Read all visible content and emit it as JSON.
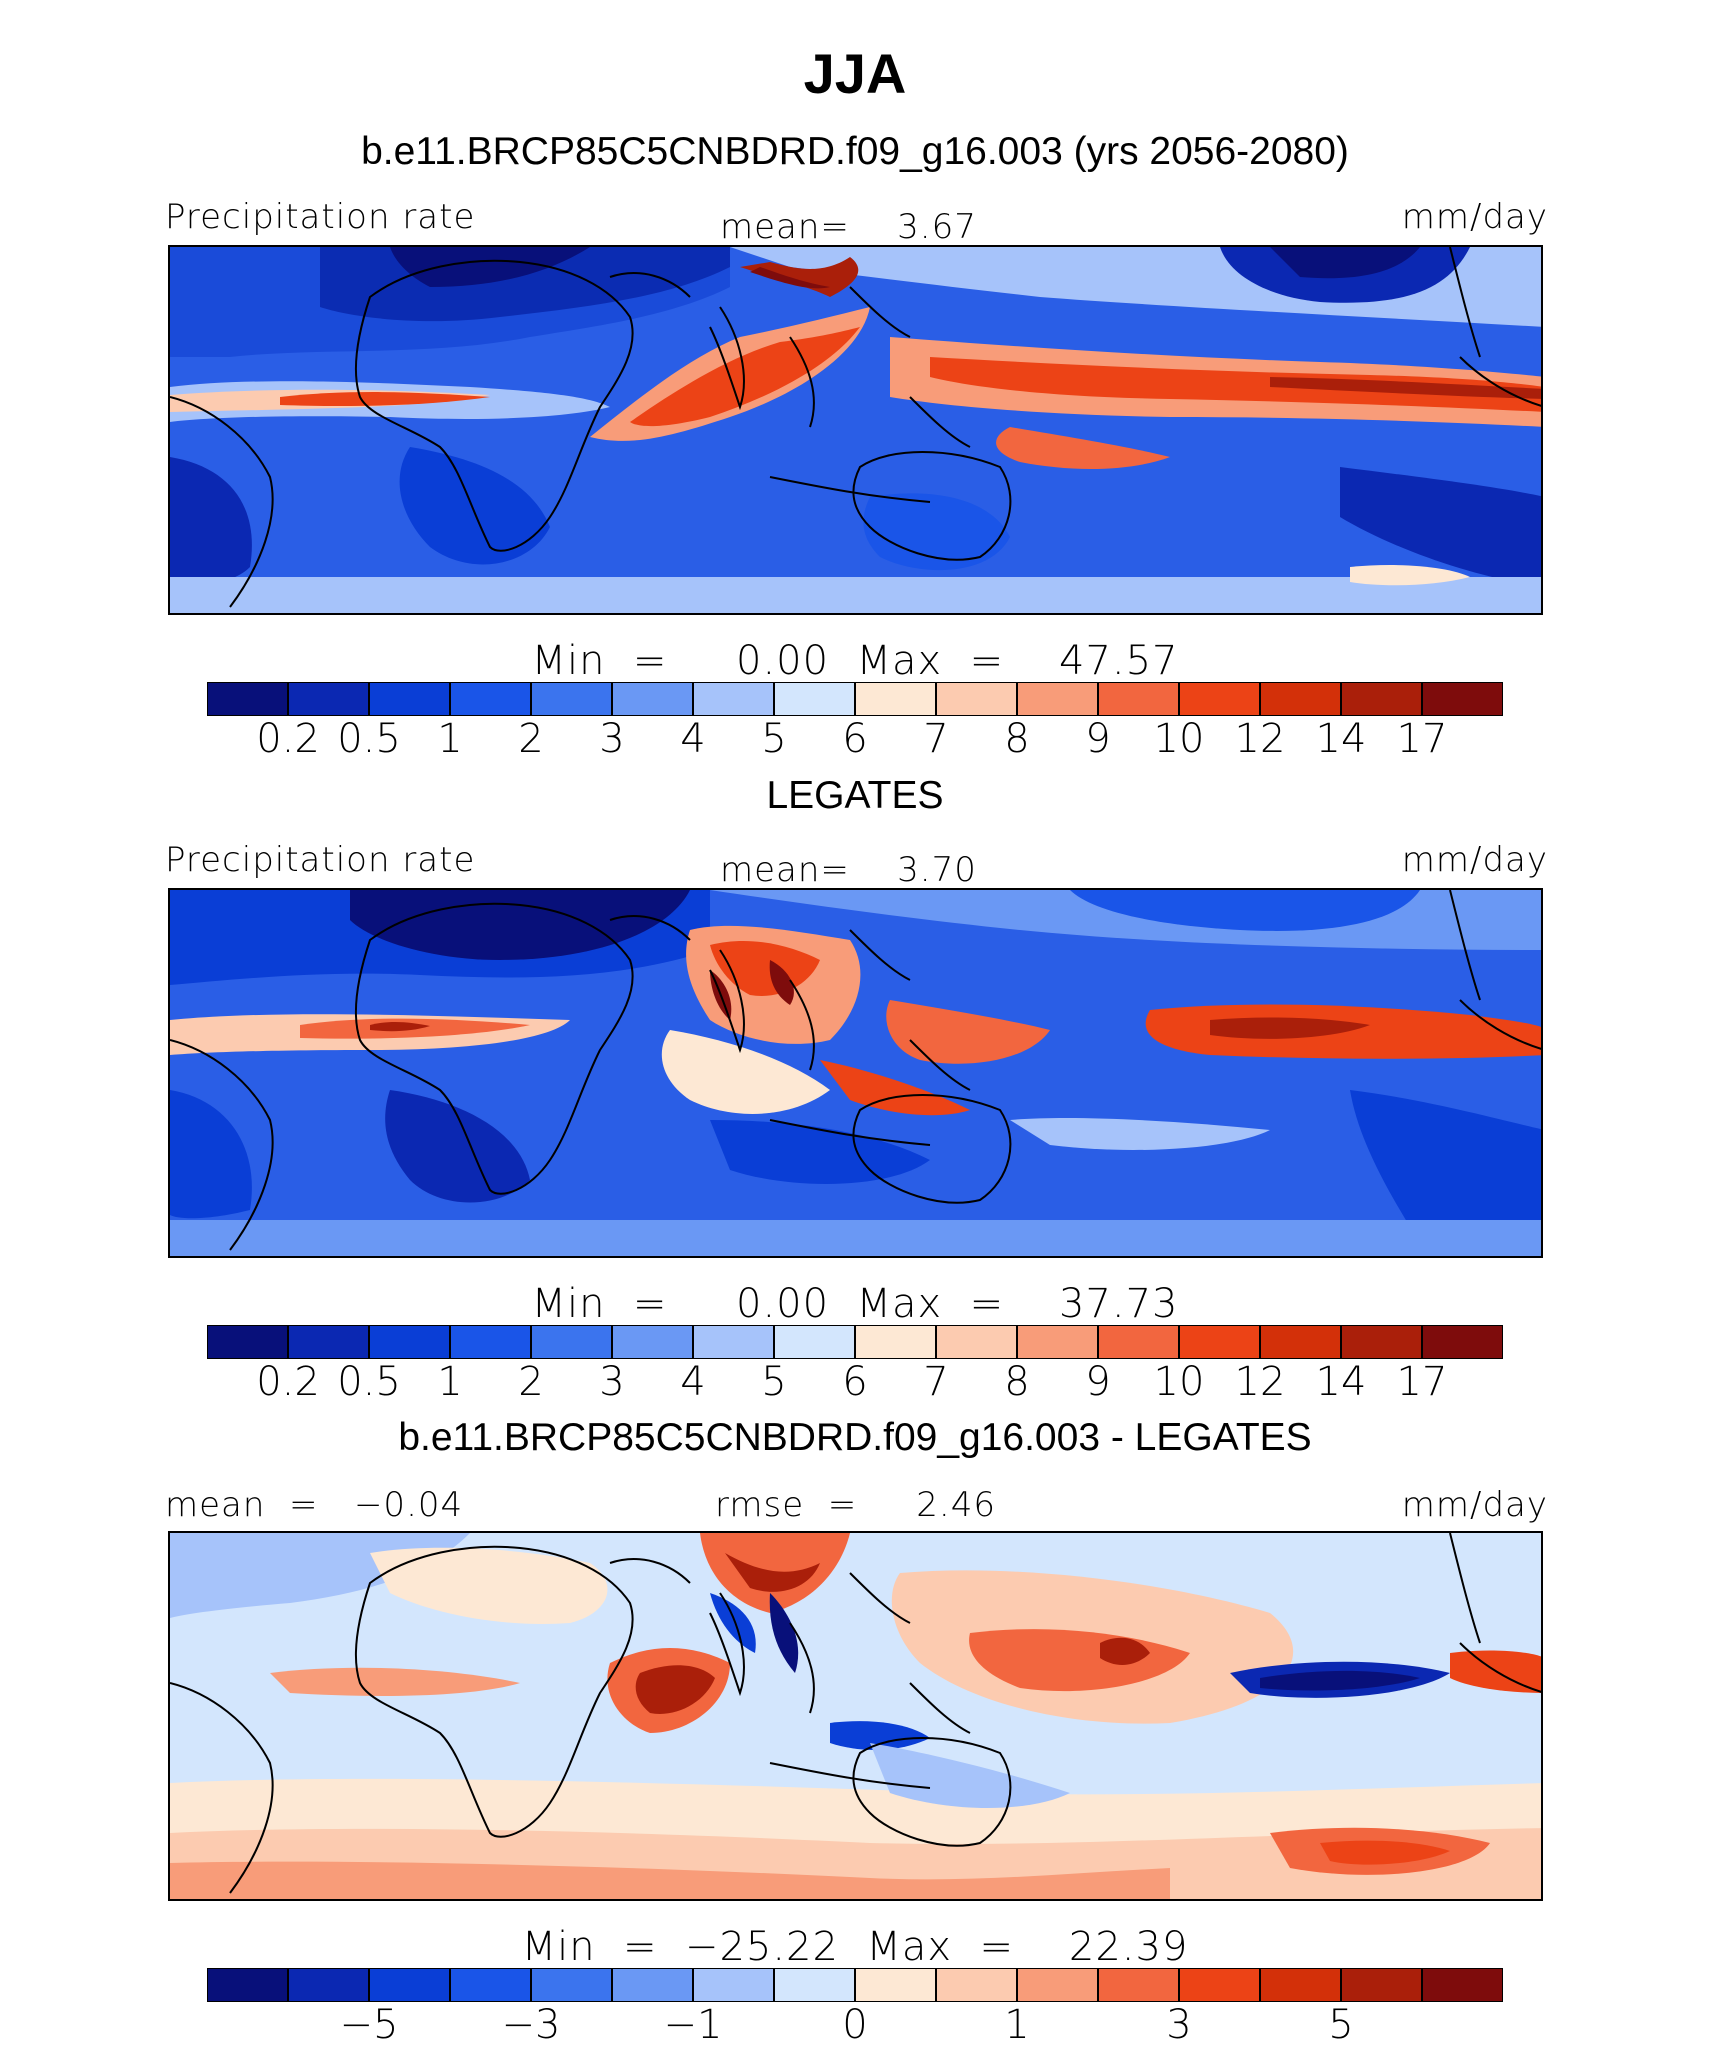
{
  "title": "JJA",
  "subtitle": "b.e11.BRCP85C5CNBDRD.f09_g16.003 (yrs 2056-2080)",
  "colors": {
    "precip_scale": [
      "#08107a",
      "#0b28b2",
      "#0a3ed6",
      "#1a55e8",
      "#3b74ee",
      "#6a98f4",
      "#a6c3fa",
      "#d3e6fd",
      "#fde8d4",
      "#fccbb0",
      "#f89c79",
      "#f2663f",
      "#ec4316",
      "#d33009",
      "#aa1f0a",
      "#7e0c0c"
    ],
    "diff_scale": [
      "#08107a",
      "#0b28b2",
      "#0a3ed6",
      "#1a55e8",
      "#3b74ee",
      "#6a98f4",
      "#a6c3fa",
      "#d3e6fd",
      "#fde8d4",
      "#fccbb0",
      "#f89c79",
      "#f2663f",
      "#ec4316",
      "#d33009",
      "#aa1f0a",
      "#7e0c0c"
    ]
  },
  "panels": [
    {
      "name": "model",
      "left_label": "Precipitation rate",
      "center_label": "mean=    3.67",
      "right_label": "mm/day",
      "minmax": "Min  =     0.00  Max  =    47.57",
      "ticks": [
        "0.2",
        "0.5",
        "1",
        "2",
        "3",
        "4",
        "5",
        "6",
        "7",
        "8",
        "9",
        "10",
        "12",
        "14",
        "17"
      ]
    },
    {
      "name": "obs",
      "heading": "LEGATES",
      "left_label": "Precipitation rate",
      "center_label": "mean=    3.70",
      "right_label": "mm/day",
      "minmax": "Min  =     0.00  Max  =    37.73",
      "ticks": [
        "0.2",
        "0.5",
        "1",
        "2",
        "3",
        "4",
        "5",
        "6",
        "7",
        "8",
        "9",
        "10",
        "12",
        "14",
        "17"
      ]
    },
    {
      "name": "diff",
      "heading": "b.e11.BRCP85C5CNBDRD.f09_g16.003 - LEGATES",
      "left_label": "mean  =   −0.04",
      "center_label": "rmse  =     2.46",
      "right_label": "mm/day",
      "minmax": "Min  =  −25.22  Max  =    22.39",
      "ticks": [
        "−5",
        "−3",
        "−1",
        "0",
        "1",
        "3",
        "5"
      ]
    }
  ]
}
